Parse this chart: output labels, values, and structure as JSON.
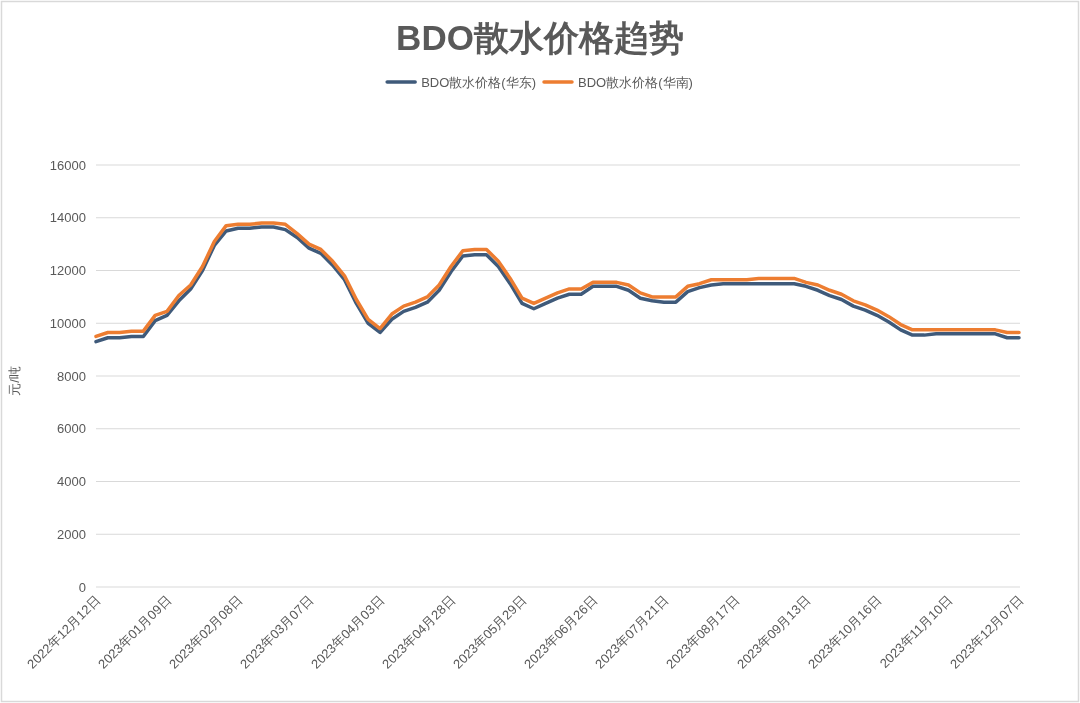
{
  "chart_data": {
    "type": "line",
    "title": "BDO散水价格趋势",
    "ylabel": "元/吨",
    "legend": "top",
    "grid": "y",
    "ylim": [
      0,
      16000
    ],
    "yticks": [
      0,
      2000,
      4000,
      6000,
      8000,
      10000,
      12000,
      14000,
      16000
    ],
    "categories": [
      "2022年12月12日",
      null,
      null,
      null,
      null,
      null,
      "2023年01月09日",
      null,
      null,
      null,
      null,
      null,
      "2023年02月08日",
      null,
      null,
      null,
      null,
      null,
      "2023年03月07日",
      null,
      null,
      null,
      null,
      null,
      "2023年04月03日",
      null,
      null,
      null,
      null,
      null,
      "2023年04月28日",
      null,
      null,
      null,
      null,
      null,
      "2023年05月29日",
      null,
      null,
      null,
      null,
      null,
      "2023年06月26日",
      null,
      null,
      null,
      null,
      null,
      "2023年07月21日",
      null,
      null,
      null,
      null,
      null,
      "2023年08月17日",
      null,
      null,
      null,
      null,
      null,
      "2023年09月13日",
      null,
      null,
      null,
      null,
      null,
      "2023年10月16日",
      null,
      null,
      null,
      null,
      null,
      "2023年11月10日",
      null,
      null,
      null,
      null,
      null,
      "2023年12月07日"
    ],
    "series": [
      {
        "name": "BDO散水价格(华东)",
        "color": "#3f5a7a",
        "values": [
          9300,
          9450,
          9450,
          9500,
          9500,
          10100,
          10300,
          10850,
          11300,
          12000,
          12950,
          13500,
          13600,
          13600,
          13650,
          13650,
          13550,
          13250,
          12850,
          12650,
          12200,
          11650,
          10750,
          10000,
          9650,
          10150,
          10450,
          10600,
          10800,
          11250,
          11950,
          12550,
          12600,
          12600,
          12150,
          11500,
          10750,
          10550,
          10750,
          10950,
          11100,
          11100,
          11400,
          11400,
          11400,
          11250,
          10950,
          10850,
          10800,
          10800,
          11200,
          11350,
          11450,
          11500,
          11500,
          11500,
          11500,
          11500,
          11500,
          11500,
          11400,
          11250,
          11050,
          10900,
          10650,
          10500,
          10300,
          10050,
          9750,
          9550,
          9550,
          9600,
          9600,
          9600,
          9600,
          9600,
          9600,
          9450,
          9450
        ]
      },
      {
        "name": "BDO散水价格(华南)",
        "color": "#ed7d31",
        "values": [
          9500,
          9650,
          9650,
          9700,
          9700,
          10300,
          10450,
          11050,
          11450,
          12150,
          13100,
          13700,
          13750,
          13750,
          13800,
          13800,
          13750,
          13400,
          13000,
          12800,
          12350,
          11800,
          10900,
          10150,
          9800,
          10350,
          10650,
          10800,
          11000,
          11450,
          12150,
          12750,
          12800,
          12800,
          12350,
          11700,
          10950,
          10750,
          10950,
          11150,
          11300,
          11300,
          11550,
          11550,
          11550,
          11450,
          11150,
          11000,
          11000,
          11000,
          11400,
          11500,
          11650,
          11650,
          11650,
          11650,
          11700,
          11700,
          11700,
          11700,
          11550,
          11450,
          11250,
          11100,
          10850,
          10700,
          10500,
          10250,
          9950,
          9750,
          9750,
          9750,
          9750,
          9750,
          9750,
          9750,
          9750,
          9650,
          9650
        ]
      }
    ]
  }
}
